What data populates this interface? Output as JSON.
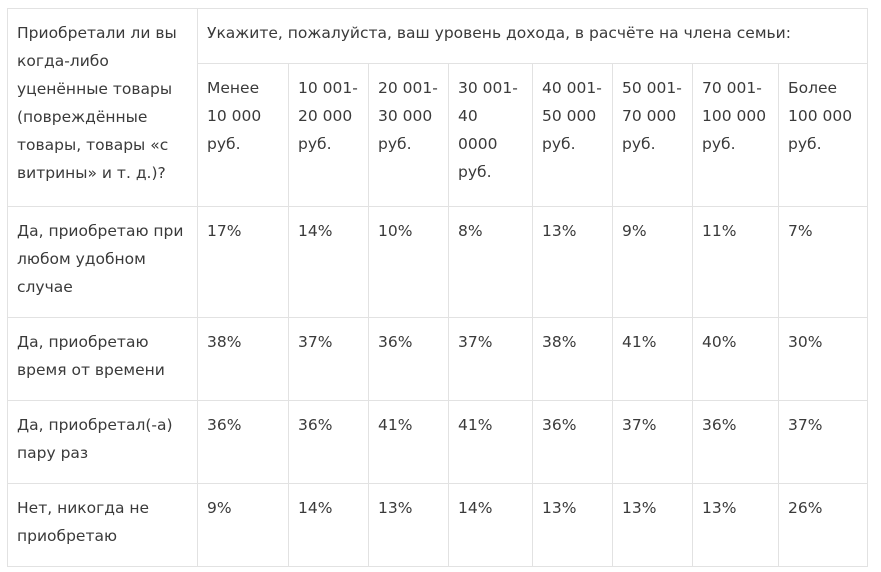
{
  "table": {
    "question_header": "Приобретали ли вы когда-либо уценённые товары (повреждённые товары, товары «с витрины» и т. д.)?",
    "income_header": "Укажите, пожалуйста, ваш уровень дохода, в расчёте на члена семьи:",
    "income_columns": [
      "Менее 10 000 руб.",
      "10 001-20 000 руб.",
      "20 001-30 000 руб.",
      "30 001-40 0000 руб.",
      "40 001-50 000 руб.",
      "50 001-70 000 руб.",
      "70 001-100 000 руб.",
      "Более 100 000 руб."
    ],
    "rows": [
      {
        "label": "Да, приобретаю при любом удобном случае",
        "values": [
          "17%",
          "14%",
          "10%",
          "8%",
          "13%",
          "9%",
          "11%",
          "7%"
        ]
      },
      {
        "label": "Да, приобретаю время от времени",
        "values": [
          "38%",
          "37%",
          "36%",
          "37%",
          "38%",
          "41%",
          "40%",
          "30%"
        ]
      },
      {
        "label": "Да, приобретал(-а) пару раз",
        "values": [
          "36%",
          "36%",
          "41%",
          "41%",
          "36%",
          "37%",
          "36%",
          "37%"
        ]
      },
      {
        "label": "Нет, никогда не приобретаю",
        "values": [
          "9%",
          "14%",
          "13%",
          "14%",
          "13%",
          "13%",
          "13%",
          "26%"
        ]
      }
    ]
  }
}
